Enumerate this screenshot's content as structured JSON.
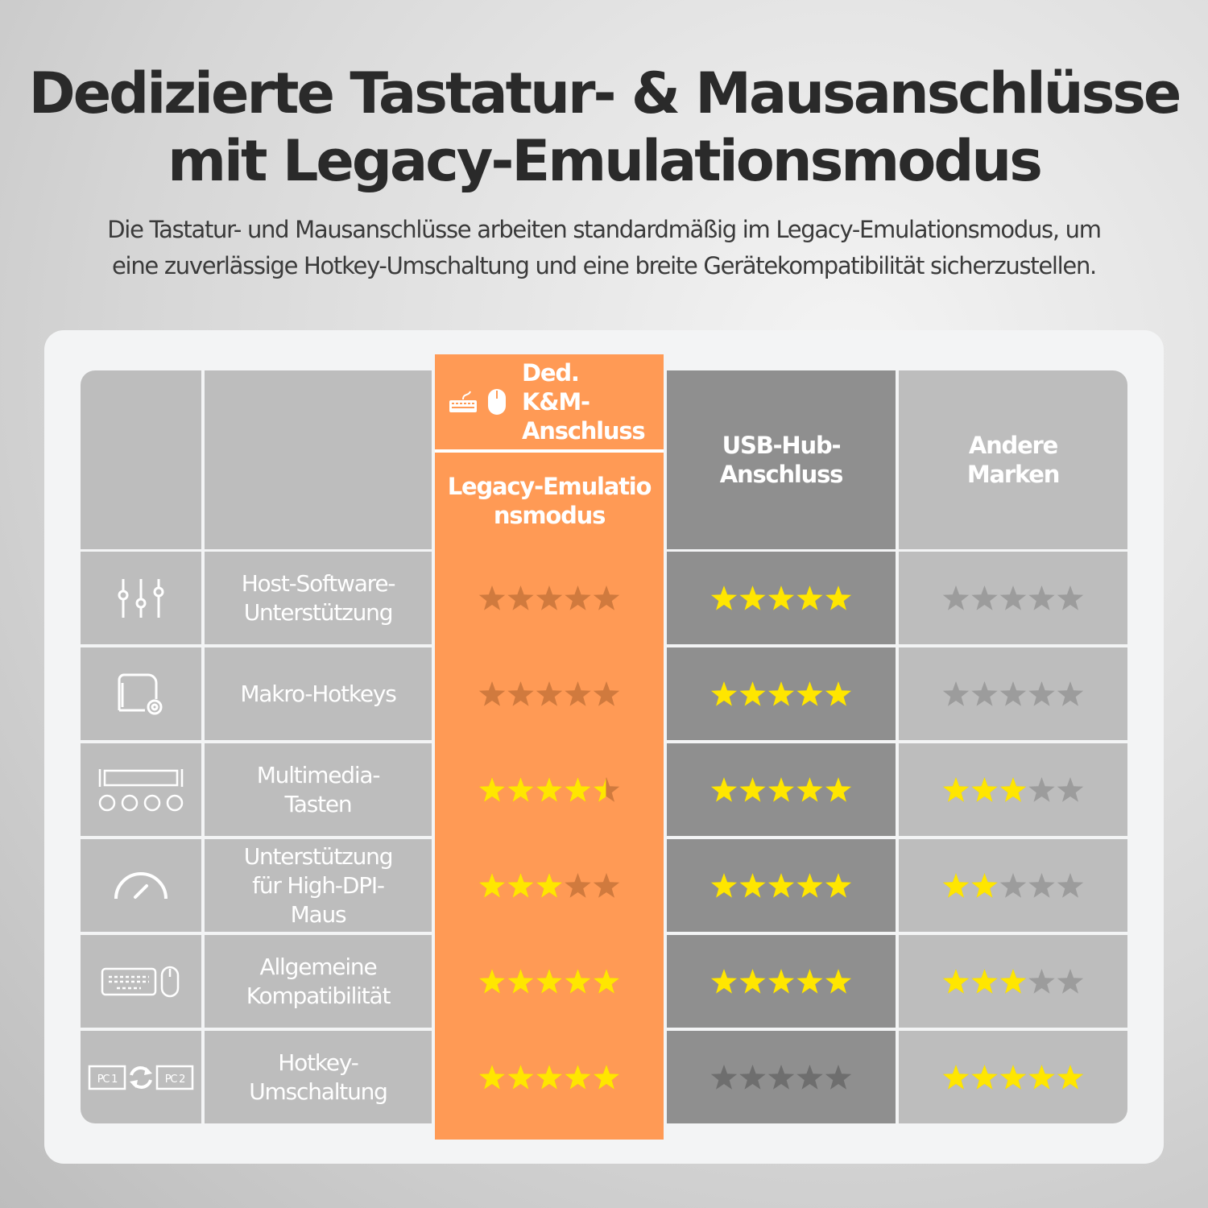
{
  "title": [
    "Dedizierte Tastatur- & Mausanschlüsse",
    "mit Legacy-Emulationsmodus"
  ],
  "subtitle": [
    "Die Tastatur- und Mausanschlüsse arbeiten standardmäßig im Legacy-Emulationsmodus, um",
    "eine zuverlässige Hotkey-Umschaltung und eine breite Gerätekompatibilität sicherzustellen."
  ],
  "colors": {
    "accent": "#ff9a55",
    "star": "#ffe600",
    "usb_column": "#8f8f8f",
    "other_column": "#bdbdbd"
  },
  "header": {
    "top_label": "Ded. K&M-Anschluss",
    "top_icons": [
      "keyboard-icon",
      "mouse-icon"
    ],
    "columns": [
      "Legacy-Emulationsmodus",
      "USB-Hub-Anschluss",
      "Andere Marken"
    ]
  },
  "rows": [
    {
      "icon": "sliders-icon",
      "label": "Host-Software-Unterstützung",
      "ratings": [
        0,
        5,
        0
      ]
    },
    {
      "icon": "macro-gear-icon",
      "label": "Makro-Hotkeys",
      "ratings": [
        0,
        5,
        0
      ]
    },
    {
      "icon": "media-keys-icon",
      "label": "Multimedia-Tasten",
      "ratings": [
        4.5,
        5,
        3
      ]
    },
    {
      "icon": "speedometer-icon",
      "label": "Unterstützung für High-DPI-Maus",
      "ratings": [
        3,
        5,
        2
      ]
    },
    {
      "icon": "keyboard-mouse-icon",
      "label": "Allgemeine Kompatibilität",
      "ratings": [
        5,
        5,
        3
      ]
    },
    {
      "icon": "pc-switch-icon",
      "label": "Hotkey-Umschaltung",
      "ratings": [
        5,
        0,
        5
      ],
      "icon_text": [
        "PC 1",
        "PC 2"
      ]
    }
  ],
  "rating_max": 5
}
